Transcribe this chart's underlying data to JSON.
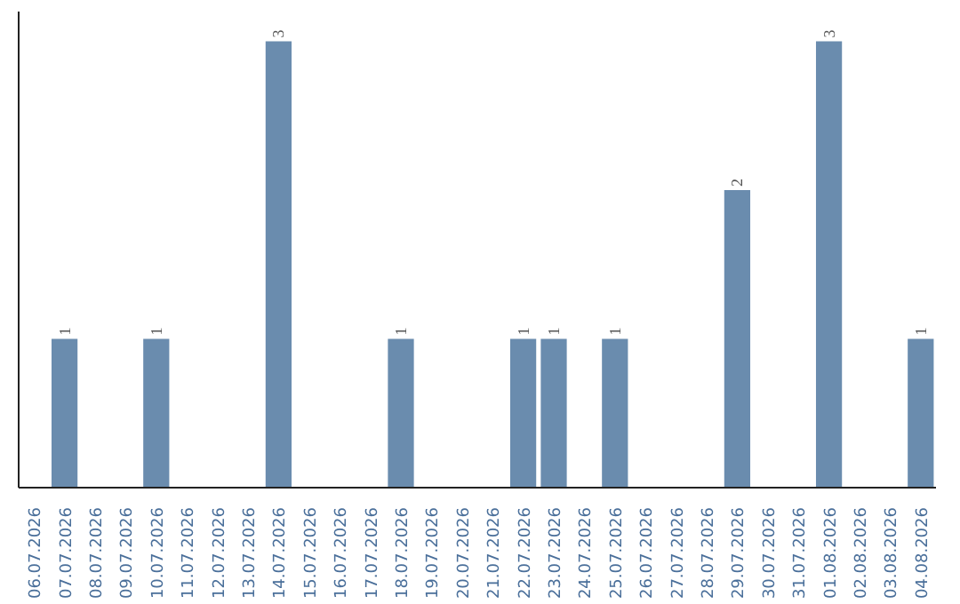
{
  "chart_data": {
    "type": "bar",
    "categories": [
      "06.07.2026",
      "07.07.2026",
      "08.07.2026",
      "09.07.2026",
      "10.07.2026",
      "11.07.2026",
      "12.07.2026",
      "13.07.2026",
      "14.07.2026",
      "15.07.2026",
      "16.07.2026",
      "17.07.2026",
      "18.07.2026",
      "19.07.2026",
      "20.07.2026",
      "21.07.2026",
      "22.07.2026",
      "23.07.2026",
      "24.07.2026",
      "25.07.2026",
      "26.07.2026",
      "27.07.2026",
      "28.07.2026",
      "29.07.2026",
      "30.07.2026",
      "31.07.2026",
      "01.08.2026",
      "02.08.2026",
      "03.08.2026",
      "04.08.2026"
    ],
    "values": [
      0,
      1,
      0,
      0,
      1,
      0,
      0,
      0,
      3,
      0,
      0,
      0,
      1,
      0,
      0,
      0,
      1,
      1,
      0,
      1,
      0,
      0,
      0,
      2,
      0,
      0,
      3,
      0,
      0,
      1
    ],
    "value_labels": [
      null,
      "1",
      null,
      null,
      "1",
      null,
      null,
      null,
      "3",
      null,
      null,
      null,
      "1",
      null,
      null,
      null,
      "1",
      "1",
      null,
      "1",
      null,
      null,
      null,
      "2",
      null,
      null,
      "3",
      null,
      null,
      "1"
    ],
    "color": "#6a8cae",
    "ylim": [
      0,
      3.2
    ],
    "tick_labels": "x",
    "grid": false
  }
}
